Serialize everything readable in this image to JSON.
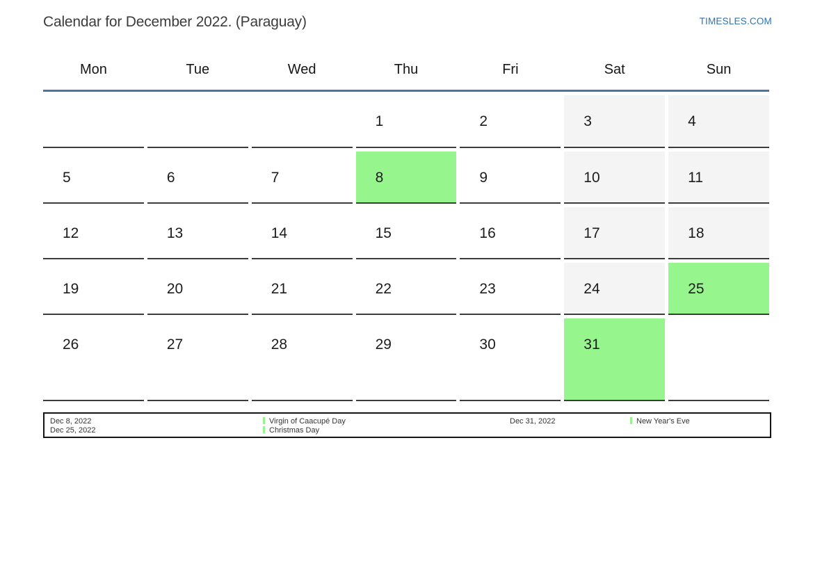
{
  "header": {
    "title": "Calendar for December 2022. (Paraguay)",
    "site_link": "TIMESLES.COM"
  },
  "weekdays": [
    "Mon",
    "Tue",
    "Wed",
    "Thu",
    "Fri",
    "Sat",
    "Sun"
  ],
  "calendar": {
    "weeks": [
      [
        {
          "day": ""
        },
        {
          "day": ""
        },
        {
          "day": ""
        },
        {
          "day": "1"
        },
        {
          "day": "2"
        },
        {
          "day": "3",
          "weekend": true
        },
        {
          "day": "4",
          "weekend": true
        }
      ],
      [
        {
          "day": "5"
        },
        {
          "day": "6"
        },
        {
          "day": "7"
        },
        {
          "day": "8",
          "holiday": true
        },
        {
          "day": "9"
        },
        {
          "day": "10",
          "weekend": true
        },
        {
          "day": "11",
          "weekend": true
        }
      ],
      [
        {
          "day": "12"
        },
        {
          "day": "13"
        },
        {
          "day": "14"
        },
        {
          "day": "15"
        },
        {
          "day": "16"
        },
        {
          "day": "17",
          "weekend": true
        },
        {
          "day": "18",
          "weekend": true
        }
      ],
      [
        {
          "day": "19"
        },
        {
          "day": "20"
        },
        {
          "day": "21"
        },
        {
          "day": "22"
        },
        {
          "day": "23"
        },
        {
          "day": "24",
          "weekend": true
        },
        {
          "day": "25",
          "holiday": true
        }
      ],
      [
        {
          "day": "26"
        },
        {
          "day": "27"
        },
        {
          "day": "28"
        },
        {
          "day": "29"
        },
        {
          "day": "30"
        },
        {
          "day": "31",
          "holiday": true
        },
        {
          "day": ""
        }
      ]
    ]
  },
  "legend": {
    "groups": [
      {
        "entries": [
          {
            "date": "Dec 8, 2022",
            "label": "Virgin of Caacupé Day"
          },
          {
            "date": "Dec 25, 2022",
            "label": "Christmas Day"
          }
        ]
      },
      {
        "entries": [
          {
            "date": "Dec 31, 2022",
            "label": "New Year's Eve"
          }
        ]
      }
    ]
  },
  "colors": {
    "holiday_green": "#96f58c",
    "weekend_gray": "#f4f4f4",
    "header_line_blue": "#4e74a0",
    "link_blue": "#2e74b5"
  }
}
